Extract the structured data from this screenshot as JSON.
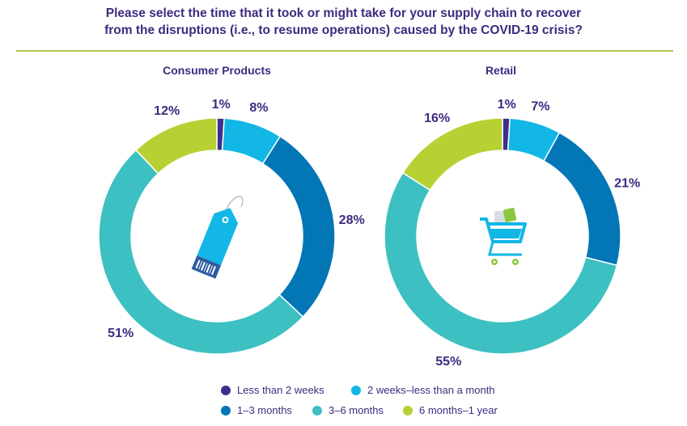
{
  "title_lines": [
    "Please select the time that it took or might take for your supply chain to recover",
    "from the disruptions (i.e., to resume operations) caused by the COVID-19 crisis?"
  ],
  "legend": [
    {
      "label": "Less than 2 weeks",
      "color": "#3e2f8c"
    },
    {
      "label": "2 weeks–less than a month",
      "color": "#12b7e6"
    },
    {
      "label": "1–3 months",
      "color": "#0376b6"
    },
    {
      "label": "3–6 months",
      "color": "#3dc0c2"
    },
    {
      "label": "6 months–1 year",
      "color": "#b7d134"
    }
  ],
  "chart_data": [
    {
      "type": "pie",
      "title": "Consumer Products",
      "icon": "price-tag-icon",
      "categories": [
        "Less than 2 weeks",
        "2 weeks–less than a month",
        "1–3 months",
        "3–6 months",
        "6 months–1 year"
      ],
      "values": [
        1,
        8,
        28,
        51,
        12
      ],
      "labels": [
        "1%",
        "8%",
        "28%",
        "51%",
        "12%"
      ]
    },
    {
      "type": "pie",
      "title": "Retail",
      "icon": "shopping-cart-icon",
      "categories": [
        "Less than 2 weeks",
        "2 weeks–less than a month",
        "1–3 months",
        "3–6 months",
        "6 months–1 year"
      ],
      "values": [
        1,
        7,
        21,
        55,
        16
      ],
      "labels": [
        "1%",
        "7%",
        "21%",
        "55%",
        "16%"
      ]
    }
  ]
}
